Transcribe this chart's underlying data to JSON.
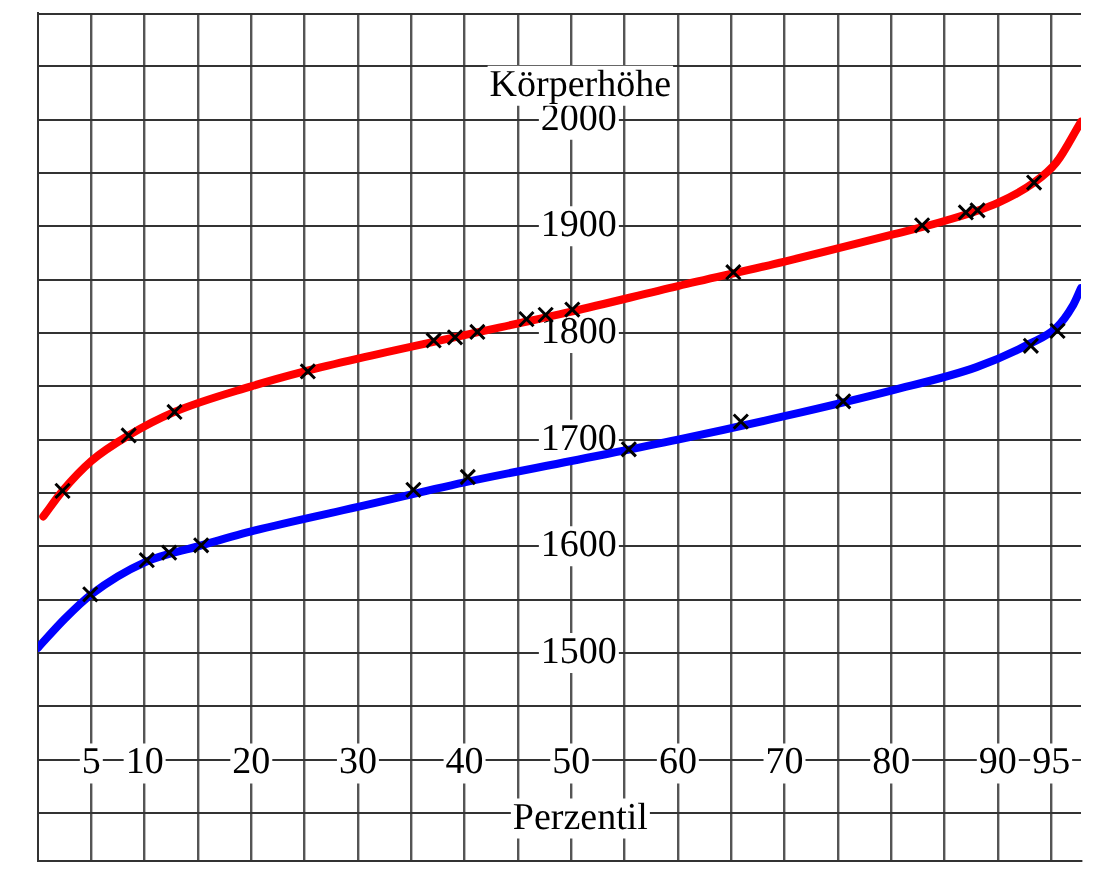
{
  "chart_data": {
    "type": "line",
    "xlabel": "Perzentil",
    "ylabel": "Körperhöhe",
    "xlim": [
      0,
      97.8
    ],
    "ylim": [
      1305,
      2100
    ],
    "xticks": [
      5,
      10,
      {
        "value": 15,
        "label": null
      },
      20,
      {
        "value": 25,
        "label": null
      },
      30,
      {
        "value": 35,
        "label": null
      },
      40,
      {
        "value": 45,
        "label": null
      },
      50,
      {
        "value": 55,
        "label": null
      },
      60,
      {
        "value": 65,
        "label": null
      },
      70,
      {
        "value": 75,
        "label": null
      },
      80,
      {
        "value": 85,
        "label": null
      },
      90,
      95
    ],
    "yticks": [
      {
        "value": 1350,
        "label": null
      },
      {
        "value": 1400,
        "label": null
      },
      {
        "value": 1450,
        "label": null
      },
      1500,
      {
        "value": 1550,
        "label": null
      },
      1600,
      {
        "value": 1650,
        "label": null
      },
      1700,
      {
        "value": 1750,
        "label": null
      },
      1800,
      {
        "value": 1850,
        "label": null
      },
      1900,
      {
        "value": 1950,
        "label": null
      },
      2000,
      {
        "value": 2050,
        "label": null
      }
    ],
    "grid": true,
    "legend": false,
    "series": [
      {
        "type": "line",
        "color": "#ff0000",
        "marker": "none",
        "x": [
          0.5,
          2.3,
          5,
          8.5,
          12.8,
          20,
          25,
          30,
          40,
          50,
          60,
          70,
          80,
          85,
          90,
          93.4,
          95.5,
          97.8
        ],
        "values": [
          1628,
          1652,
          1680,
          1704,
          1726,
          1750,
          1764,
          1776,
          1798,
          1820,
          1844,
          1867,
          1892,
          1905,
          1922,
          1941,
          1960,
          1998
        ]
      },
      {
        "type": "line",
        "color": "#0000ff",
        "marker": "none",
        "x": [
          0,
          2.5,
          5,
          10,
          15,
          20,
          30,
          40,
          50,
          60,
          70,
          80,
          88,
          93,
          95.5,
          97,
          97.8
        ],
        "values": [
          1505,
          1532,
          1555,
          1585,
          1600,
          1614,
          1637,
          1660,
          1680,
          1700,
          1722,
          1746,
          1768,
          1790,
          1805,
          1825,
          1842
        ]
      },
      {
        "type": "scatter",
        "color": "#000000",
        "marker": "cross",
        "x": [
          2.3,
          8.5,
          12.8,
          25.3,
          37.1,
          39.1,
          41.2,
          45.8,
          47.6,
          50.1,
          65.2,
          82.9,
          87,
          88.1,
          93.4
        ],
        "values": [
          1652,
          1704,
          1726,
          1764,
          1793,
          1796,
          1801,
          1813,
          1817,
          1822,
          1857,
          1901,
          1913,
          1915,
          1941
        ]
      },
      {
        "type": "scatter",
        "color": "#000000",
        "marker": "cross",
        "x": [
          4.9,
          10.2,
          12.3,
          15.3,
          35.2,
          40.3,
          55.4,
          65.9,
          75.5,
          93.1,
          95.6
        ],
        "values": [
          1555,
          1587,
          1594,
          1601,
          1653,
          1665,
          1691,
          1717,
          1736,
          1788,
          1802
        ]
      }
    ]
  }
}
